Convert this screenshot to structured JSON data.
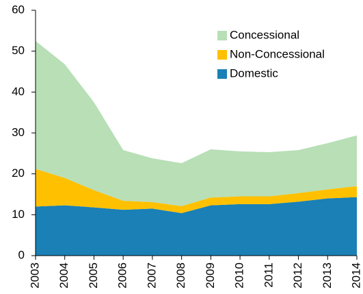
{
  "chart_data": {
    "type": "stacked_area",
    "categories": [
      "2003",
      "2004",
      "2005",
      "2006",
      "2007",
      "2008",
      "2009",
      "2010",
      "2011",
      "2012",
      "2013",
      "2014"
    ],
    "series": [
      {
        "name": "Domestic",
        "color": "#1a80b6",
        "values": [
          12,
          12.3,
          11.8,
          11.2,
          11.5,
          10.4,
          12.3,
          12.6,
          12.6,
          13.2,
          14,
          14.3
        ]
      },
      {
        "name": "Non-Concessional",
        "color": "#ffc000",
        "values": [
          9.2,
          6.7,
          4.2,
          2.2,
          1.6,
          1.7,
          1.9,
          1.9,
          1.9,
          2.1,
          2.2,
          2.7
        ]
      },
      {
        "name": "Concessional",
        "color": "#b8dfb6",
        "values": [
          31.3,
          27.8,
          21.5,
          12.4,
          10.7,
          10.5,
          11.8,
          11,
          10.8,
          10.5,
          11.3,
          12.4
        ]
      }
    ],
    "ylim": [
      0,
      60
    ],
    "yticks": [
      0,
      10,
      20,
      30,
      40,
      50,
      60
    ],
    "legend": "top-right"
  }
}
